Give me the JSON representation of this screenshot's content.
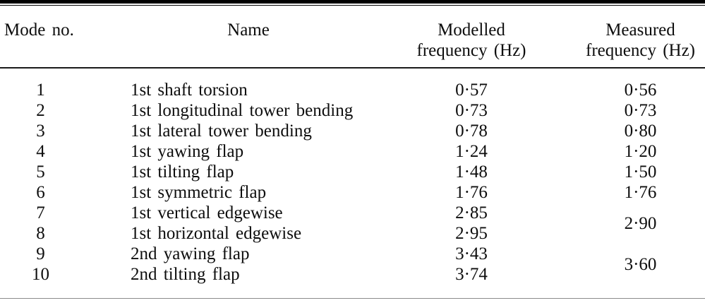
{
  "table": {
    "columns": {
      "mode": {
        "label": "Mode no."
      },
      "name": {
        "label": "Name"
      },
      "modelled": {
        "label_line1": "Modelled",
        "label_line2": "frequency (Hz)"
      },
      "measured": {
        "label_line1": "Measured",
        "label_line2": "frequency (Hz)"
      }
    },
    "rows": [
      {
        "mode": "1",
        "name": "1st shaft torsion",
        "modelled": "0·57",
        "measured": "0·56"
      },
      {
        "mode": "2",
        "name": "1st longitudinal tower bending",
        "modelled": "0·73",
        "measured": "0·73"
      },
      {
        "mode": "3",
        "name": "1st lateral tower bending",
        "modelled": "0·78",
        "measured": "0·80"
      },
      {
        "mode": "4",
        "name": "1st yawing flap",
        "modelled": "1·24",
        "measured": "1·20"
      },
      {
        "mode": "5",
        "name": "1st tilting flap",
        "modelled": "1·48",
        "measured": "1·50"
      },
      {
        "mode": "6",
        "name": "1st symmetric flap",
        "modelled": "1·76",
        "measured": "1·76"
      },
      {
        "mode": "7",
        "name": "1st vertical edgewise",
        "modelled": "2·85",
        "measured": "2·90",
        "measured_spans_rows": "7-8"
      },
      {
        "mode": "8",
        "name": "1st horizontal edgewise",
        "modelled": "2·95"
      },
      {
        "mode": "9",
        "name": "2nd yawing flap",
        "modelled": "3·43",
        "measured": "3·60",
        "measured_spans_rows": "9-10"
      },
      {
        "mode": "10",
        "name": "2nd tilting flap",
        "modelled": "3·74"
      }
    ]
  }
}
